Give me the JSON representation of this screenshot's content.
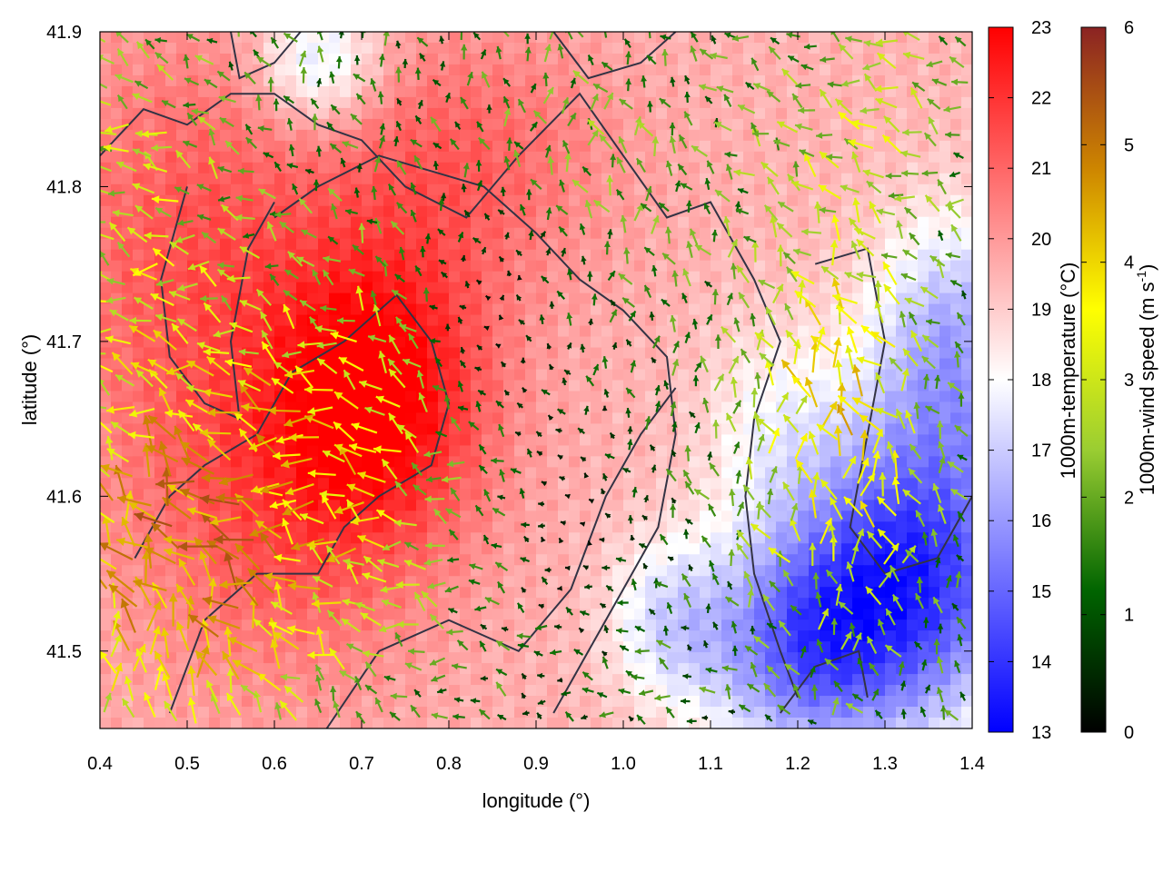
{
  "chart_data": {
    "type": "heatmap",
    "xlabel": "longitude (°)",
    "ylabel": "latitude (°)",
    "xlim": [
      0.4,
      1.4
    ],
    "ylim": [
      41.45,
      41.9
    ],
    "x_ticks": [
      "0.4",
      "0.5",
      "0.6",
      "0.7",
      "0.8",
      "0.9",
      "1.0",
      "1.1",
      "1.2",
      "1.3",
      "1.4"
    ],
    "y_ticks": [
      "41.5",
      "41.6",
      "41.7",
      "41.8",
      "41.9"
    ],
    "x_tick_values": [
      0.4,
      0.5,
      0.6,
      0.7,
      0.8,
      0.9,
      1.0,
      1.1,
      1.2,
      1.3,
      1.4
    ],
    "y_tick_values": [
      41.5,
      41.6,
      41.7,
      41.8,
      41.9
    ],
    "temperature_colorbar": {
      "label": "1000m-temperature (°C)",
      "range": [
        13,
        23
      ],
      "ticks": [
        "13",
        "14",
        "15",
        "16",
        "17",
        "18",
        "19",
        "20",
        "21",
        "22",
        "23"
      ],
      "tick_values": [
        13,
        14,
        15,
        16,
        17,
        18,
        19,
        20,
        21,
        22,
        23
      ],
      "colors": [
        "#0000ff",
        "#ffffff",
        "#ff0000"
      ]
    },
    "wind_colorbar": {
      "label_main": "1000m-wind speed (m s",
      "label_sup": "-1",
      "label_end": ")",
      "range": [
        0,
        6
      ],
      "ticks": [
        "0",
        "1",
        "2",
        "3",
        "4",
        "5",
        "6"
      ],
      "tick_values": [
        0,
        1,
        2,
        3,
        4,
        5,
        6
      ],
      "colors": [
        "#000000",
        "#006400",
        "#9acd32",
        "#ffff00",
        "#cd8500",
        "#8b2323"
      ]
    },
    "temperature_field": {
      "background": 19.5,
      "features": [
        {
          "lon": 0.72,
          "lat": 41.67,
          "amp": 3.5,
          "sx": 0.09,
          "sy": 0.07
        },
        {
          "lon": 0.5,
          "lat": 41.76,
          "amp": 1.8,
          "sx": 0.12,
          "sy": 0.1
        },
        {
          "lon": 0.82,
          "lat": 41.82,
          "amp": 1.5,
          "sx": 0.12,
          "sy": 0.06
        },
        {
          "lon": 0.6,
          "lat": 41.58,
          "amp": 1.5,
          "sx": 0.12,
          "sy": 0.08
        },
        {
          "lon": 1.33,
          "lat": 41.55,
          "amp": -5.5,
          "sx": 0.1,
          "sy": 0.07
        },
        {
          "lon": 1.2,
          "lat": 41.5,
          "amp": -3.5,
          "sx": 0.08,
          "sy": 0.05
        },
        {
          "lon": 1.38,
          "lat": 41.7,
          "amp": -3.0,
          "sx": 0.07,
          "sy": 0.06
        },
        {
          "lon": 1.05,
          "lat": 41.52,
          "amp": -2.0,
          "sx": 0.05,
          "sy": 0.04
        },
        {
          "lon": 0.65,
          "lat": 41.88,
          "amp": -2.5,
          "sx": 0.05,
          "sy": 0.03
        },
        {
          "lon": 1.17,
          "lat": 41.65,
          "amp": -1.2,
          "sx": 0.06,
          "sy": 0.05
        }
      ]
    },
    "wind_field": {
      "features": [
        {
          "lon": 0.5,
          "lat": 41.55,
          "amp": 3.5,
          "sx": 0.14,
          "sy": 0.09
        },
        {
          "lon": 0.7,
          "lat": 41.65,
          "amp": 1.8,
          "sx": 0.1,
          "sy": 0.08
        },
        {
          "lon": 0.45,
          "lat": 41.78,
          "amp": 1.6,
          "sx": 0.08,
          "sy": 0.1
        },
        {
          "lon": 1.25,
          "lat": 41.65,
          "amp": 2.8,
          "sx": 0.08,
          "sy": 0.1
        },
        {
          "lon": 0.95,
          "lat": 41.82,
          "amp": 1.0,
          "sx": 0.1,
          "sy": 0.06
        },
        {
          "lon": 1.3,
          "lat": 41.85,
          "amp": 1.2,
          "sx": 0.1,
          "sy": 0.05
        }
      ],
      "base_speed": 1.2,
      "calm_zones": [
        {
          "lon": 0.85,
          "lat": 41.72,
          "sx": 0.06,
          "sy": 0.06
        },
        {
          "lon": 0.95,
          "lat": 41.58,
          "sx": 0.05,
          "sy": 0.05
        }
      ],
      "grid_nx": 42,
      "grid_ny": 32
    },
    "contours": [
      [
        [
          0.4,
          41.82
        ],
        [
          0.45,
          41.85
        ],
        [
          0.5,
          41.84
        ],
        [
          0.55,
          41.86
        ],
        [
          0.6,
          41.86
        ],
        [
          0.65,
          41.84
        ],
        [
          0.7,
          41.83
        ],
        [
          0.75,
          41.8
        ],
        [
          0.82,
          41.78
        ],
        [
          0.88,
          41.82
        ],
        [
          0.95,
          41.86
        ],
        [
          1.0,
          41.82
        ],
        [
          1.05,
          41.78
        ],
        [
          1.1,
          41.79
        ],
        [
          1.15,
          41.74
        ],
        [
          1.18,
          41.7
        ],
        [
          1.15,
          41.65
        ],
        [
          1.14,
          41.6
        ],
        [
          1.15,
          41.55
        ],
        [
          1.18,
          41.5
        ],
        [
          1.2,
          41.47
        ]
      ],
      [
        [
          0.6,
          41.78
        ],
        [
          0.65,
          41.8
        ],
        [
          0.72,
          41.82
        ],
        [
          0.78,
          41.81
        ],
        [
          0.84,
          41.8
        ],
        [
          0.9,
          41.77
        ],
        [
          0.95,
          41.74
        ],
        [
          1.0,
          41.72
        ],
        [
          1.05,
          41.69
        ],
        [
          1.06,
          41.64
        ],
        [
          1.04,
          41.58
        ],
        [
          1.0,
          41.54
        ],
        [
          0.96,
          41.5
        ],
        [
          0.92,
          41.46
        ]
      ],
      [
        [
          0.5,
          41.8
        ],
        [
          0.47,
          41.74
        ],
        [
          0.48,
          41.69
        ],
        [
          0.52,
          41.66
        ],
        [
          0.56,
          41.65
        ],
        [
          0.55,
          41.7
        ],
        [
          0.57,
          41.76
        ],
        [
          0.6,
          41.79
        ]
      ],
      [
        [
          0.44,
          41.56
        ],
        [
          0.48,
          41.6
        ],
        [
          0.52,
          41.62
        ],
        [
          0.58,
          41.64
        ],
        [
          0.62,
          41.68
        ],
        [
          0.68,
          41.7
        ],
        [
          0.74,
          41.73
        ],
        [
          0.78,
          41.7
        ],
        [
          0.8,
          41.66
        ],
        [
          0.78,
          41.62
        ],
        [
          0.72,
          41.6
        ],
        [
          0.68,
          41.58
        ],
        [
          0.65,
          41.55
        ],
        [
          0.58,
          41.55
        ],
        [
          0.52,
          41.52
        ],
        [
          0.48,
          41.46
        ]
      ],
      [
        [
          0.66,
          41.45
        ],
        [
          0.72,
          41.5
        ],
        [
          0.8,
          41.52
        ],
        [
          0.88,
          41.5
        ],
        [
          0.94,
          41.54
        ],
        [
          0.98,
          41.6
        ],
        [
          1.02,
          41.64
        ],
        [
          1.06,
          41.67
        ]
      ],
      [
        [
          1.22,
          41.75
        ],
        [
          1.28,
          41.76
        ],
        [
          1.3,
          41.7
        ],
        [
          1.28,
          41.64
        ],
        [
          1.26,
          41.58
        ],
        [
          1.3,
          41.55
        ],
        [
          1.36,
          41.56
        ],
        [
          1.4,
          41.6
        ]
      ],
      [
        [
          0.92,
          41.9
        ],
        [
          0.96,
          41.87
        ],
        [
          1.02,
          41.88
        ],
        [
          1.06,
          41.9
        ]
      ],
      [
        [
          1.18,
          41.46
        ],
        [
          1.22,
          41.49
        ],
        [
          1.27,
          41.5
        ],
        [
          1.28,
          41.47
        ]
      ],
      [
        [
          0.55,
          41.9
        ],
        [
          0.56,
          41.87
        ],
        [
          0.6,
          41.88
        ],
        [
          0.63,
          41.9
        ]
      ]
    ]
  }
}
